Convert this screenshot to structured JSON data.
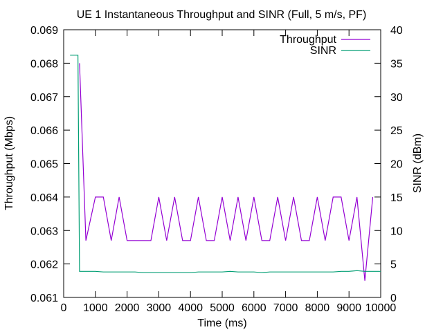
{
  "chart_data": {
    "type": "line",
    "title": "UE 1 Instantaneous Throughput and SINR (Full, 5 m/s, PF)",
    "xlabel": "Time (ms)",
    "ylabel": "Throughput (Mbps)",
    "y2label": "SINR (dBm)",
    "xlim": [
      0,
      10000
    ],
    "ylim": [
      0.061,
      0.069
    ],
    "y2lim": [
      0,
      40
    ],
    "xticks": [
      "0",
      "1000",
      "2000",
      "3000",
      "4000",
      "5000",
      "6000",
      "7000",
      "8000",
      "9000",
      "10000"
    ],
    "yticks": [
      "0.061",
      "0.062",
      "0.063",
      "0.064",
      "0.065",
      "0.066",
      "0.067",
      "0.068",
      "0.069"
    ],
    "y2ticks": [
      "0",
      "5",
      "10",
      "15",
      "20",
      "25",
      "30",
      "35",
      "40"
    ],
    "grid": false,
    "legend_position": "top-right",
    "series": [
      {
        "name": "Throughput",
        "axis": "y",
        "color": "#9400d3",
        "x": [
          500,
          700,
          1000,
          1250,
          1500,
          1750,
          2000,
          2750,
          3000,
          3250,
          3500,
          3750,
          4000,
          4250,
          4500,
          4750,
          5000,
          5250,
          5500,
          5750,
          6000,
          6250,
          6500,
          6750,
          7000,
          7250,
          7500,
          7750,
          8000,
          8250,
          8500,
          8750,
          9000,
          9250,
          9500,
          9750
        ],
        "values": [
          0.068,
          0.0627,
          0.064,
          0.064,
          0.0627,
          0.064,
          0.0627,
          0.0627,
          0.064,
          0.0627,
          0.064,
          0.0627,
          0.0627,
          0.064,
          0.0627,
          0.0627,
          0.064,
          0.0627,
          0.064,
          0.0627,
          0.064,
          0.0627,
          0.0627,
          0.064,
          0.0627,
          0.064,
          0.0627,
          0.0627,
          0.064,
          0.0627,
          0.064,
          0.064,
          0.0627,
          0.064,
          0.0615,
          0.064
        ]
      },
      {
        "name": "SINR",
        "axis": "y2",
        "color": "#009e73",
        "x": [
          200,
          450,
          500,
          1000,
          1250,
          1500,
          2000,
          2250,
          2500,
          3000,
          4000,
          4250,
          5000,
          5250,
          5500,
          6000,
          6250,
          6500,
          8500,
          8750,
          9000,
          9250,
          9500,
          9750,
          10000
        ],
        "values": [
          36.2,
          36.2,
          3.9,
          3.9,
          3.8,
          3.8,
          3.8,
          3.8,
          3.7,
          3.7,
          3.7,
          3.8,
          3.8,
          3.9,
          3.8,
          3.8,
          3.7,
          3.8,
          3.8,
          3.9,
          3.9,
          4.0,
          3.9,
          3.9,
          3.9
        ]
      }
    ]
  }
}
